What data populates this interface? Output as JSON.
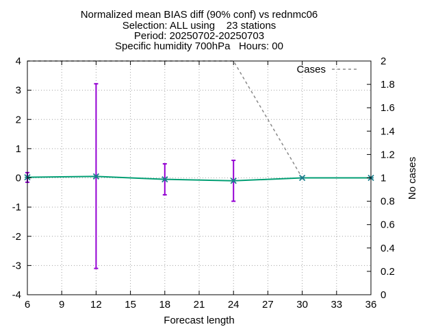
{
  "chart_data": {
    "type": "line",
    "title_lines": [
      "Normalized mean BIAS diff (90% conf) vs rednmc06",
      "Selection: ALL using    23 stations",
      "Period: 20250702-20250703",
      "Specific humidity 700hPa   Hours: 00"
    ],
    "xlabel": "Forecast length",
    "y2label": "No cases",
    "xlim": [
      6,
      36
    ],
    "ylim": [
      -4,
      4
    ],
    "y2lim": [
      0,
      2
    ],
    "x_ticks": [
      "6",
      "9",
      "12",
      "15",
      "18",
      "21",
      "24",
      "27",
      "30",
      "33",
      "36"
    ],
    "y_ticks": [
      "4",
      "3",
      "2",
      "1",
      "0",
      "-1",
      "-2",
      "-3",
      "-4"
    ],
    "y2_ticks": [
      "2",
      "1.8",
      "1.6",
      "1.4",
      "1.2",
      "1",
      "0.8",
      "0.6",
      "0.4",
      "0.2",
      "0"
    ],
    "grid": true,
    "legend_placement": "top-right",
    "series": [
      {
        "axis": "y",
        "color": "#009e73",
        "points": [
          {
            "x": 6,
            "y": 0.02
          },
          {
            "x": 12,
            "y": 0.05
          },
          {
            "x": 18,
            "y": -0.05
          },
          {
            "x": 24,
            "y": -0.1
          },
          {
            "x": 30,
            "y": 0.0
          },
          {
            "x": 36,
            "y": 0.0
          }
        ]
      },
      {
        "name": "Cases",
        "axis": "y2",
        "style": "dashed",
        "color": "#888888",
        "points": [
          {
            "x": 6,
            "y": 2
          },
          {
            "x": 12,
            "y": 2
          },
          {
            "x": 18,
            "y": 2
          },
          {
            "x": 24,
            "y": 2
          },
          {
            "x": 30,
            "y": 1
          },
          {
            "x": 36,
            "y": 1
          }
        ]
      }
    ],
    "error_bars": {
      "color": "#9400d3",
      "items": [
        {
          "x": 6,
          "low": -0.15,
          "high": 0.18
        },
        {
          "x": 12,
          "low": -3.1,
          "high": 3.22
        },
        {
          "x": 18,
          "low": -0.58,
          "high": 0.48
        },
        {
          "x": 24,
          "low": -0.8,
          "high": 0.6
        }
      ]
    }
  }
}
